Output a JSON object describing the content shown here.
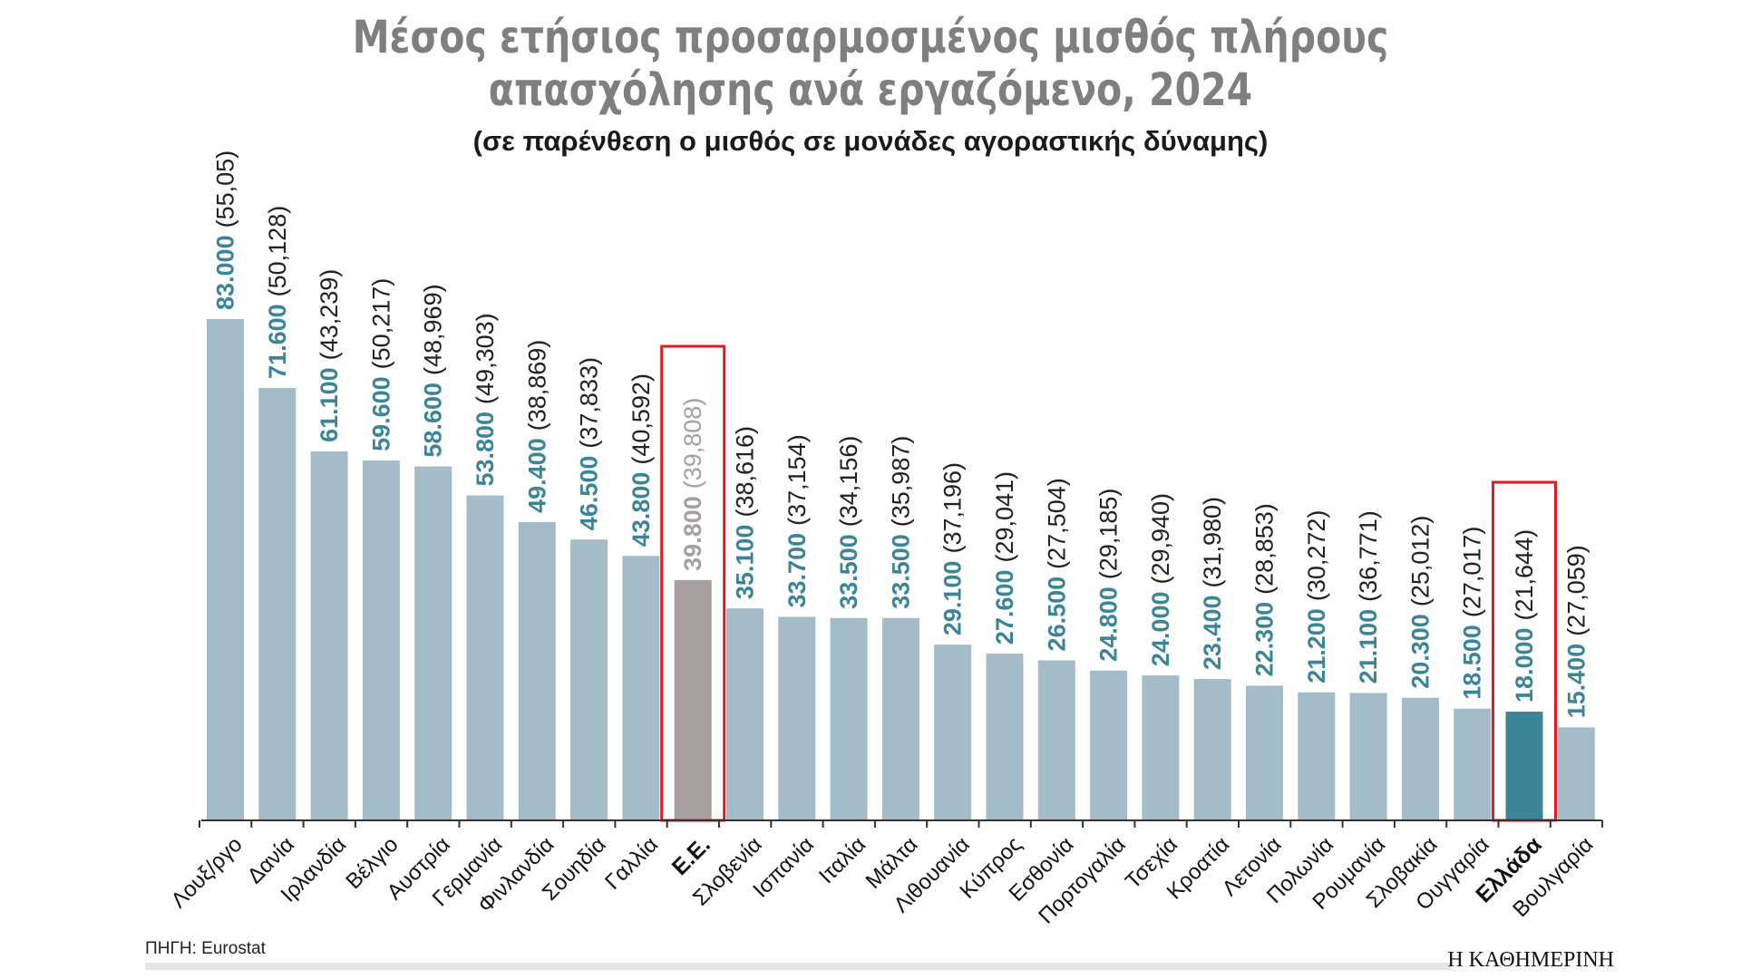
{
  "chart_data": {
    "type": "bar",
    "title_line1": "Μέσος ετήσιος προσαρμοσμένος μισθός πλήρους",
    "title_line2": "απασχόλησης ανά εργαζόμενο, 2024",
    "subtitle": "(σε παρένθεση ο μισθός σε μονάδες αγοραστικής δύναμης)",
    "xlabel": "",
    "ylabel": "",
    "ylim": [
      0,
      83000
    ],
    "grid": false,
    "colors": {
      "default_bar": "#a3bcc8",
      "eu_bar": "#a8a09f",
      "greece_bar": "#3a8597",
      "value_label": "#3a8597",
      "eu_label": "#a8a09f",
      "pps_label": "#222222",
      "highlight_box": "#e11b22"
    },
    "categories": [
      "Λουξ/ργο",
      "Δανία",
      "Ιρλανδία",
      "Βέλγιο",
      "Αυστρία",
      "Γερμανία",
      "Φινλανδία",
      "Σουηδία",
      "Γαλλία",
      "Ε.Ε.",
      "Σλοβενία",
      "Ισπανία",
      "Ιταλία",
      "Μάλτα",
      "Λιθουανία",
      "Κύπρος",
      "Εσθονία",
      "Πορτογαλία",
      "Τσεχία",
      "Κροατία",
      "Λετονία",
      "Πολωνία",
      "Ρουμανία",
      "Σλοβακία",
      "Ουγγαρία",
      "Ελλάδα",
      "Βουλγαρία"
    ],
    "values": [
      83000,
      71600,
      61100,
      59600,
      58600,
      53800,
      49400,
      46500,
      43800,
      39800,
      35100,
      33700,
      33500,
      33500,
      29100,
      27600,
      26500,
      24800,
      24000,
      23400,
      22300,
      21200,
      21100,
      20300,
      18500,
      18000,
      15400
    ],
    "value_labels": [
      "83.000",
      "71.600",
      "61.100",
      "59.600",
      "58.600",
      "53.800",
      "49.400",
      "46.500",
      "43.800",
      "39.800",
      "35.100",
      "33.700",
      "33.500",
      "33.500",
      "29.100",
      "27.600",
      "26.500",
      "24.800",
      "24.000",
      "23.400",
      "22.300",
      "21.200",
      "21.100",
      "20.300",
      "18.500",
      "18.000",
      "15.400"
    ],
    "pps_labels": [
      "(55,05)",
      "(50,128)",
      "(43,239)",
      "(50,217)",
      "(48,969)",
      "(49,303)",
      "(38,869)",
      "(37,833)",
      "(40,592)",
      "(39,808)",
      "(38,616)",
      "(37,154)",
      "(34,156)",
      "(35,987)",
      "(37,196)",
      "(29,041)",
      "(27,504)",
      "(29,185)",
      "(29,940)",
      "(31,980)",
      "(28,853)",
      "(30,272)",
      "(36,771)",
      "(25,012)",
      "(27,017)",
      "(21,644)",
      "(27,059)"
    ],
    "highlighted": [
      "Ε.Ε.",
      "Ελλάδα"
    ]
  },
  "footer": {
    "source": "ΠΗΓΗ: Eurostat",
    "publisher": "Η ΚΑΘΗΜΕΡΙΝΗ"
  }
}
